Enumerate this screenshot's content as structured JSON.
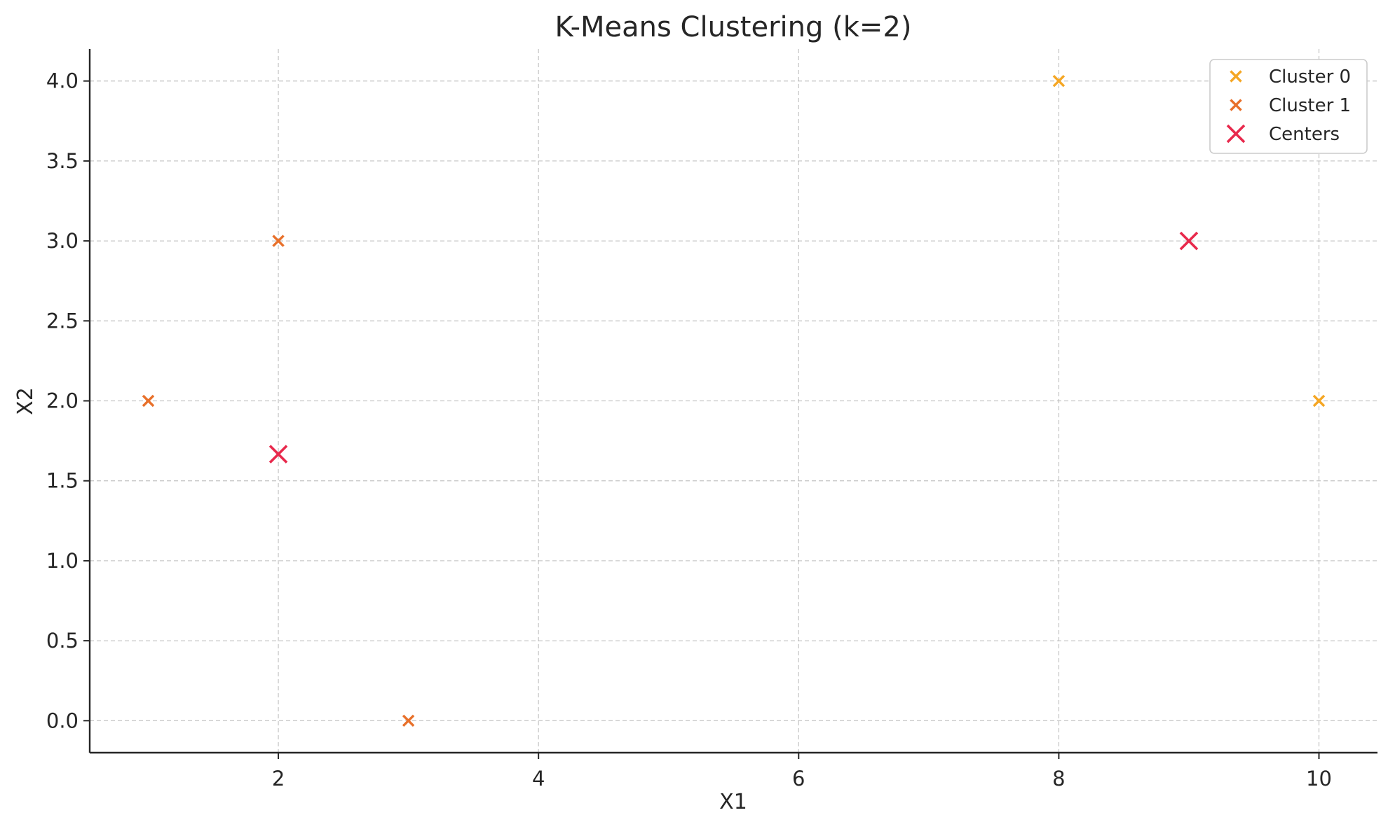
{
  "chart_data": {
    "type": "scatter",
    "title": "K-Means Clustering (k=2)",
    "xlabel": "X1",
    "ylabel": "X2",
    "xlim": [
      0.55,
      10.45
    ],
    "ylim": [
      -0.2,
      4.2
    ],
    "xticks": [
      2,
      4,
      6,
      8,
      10
    ],
    "yticks": [
      0.0,
      0.5,
      1.0,
      1.5,
      2.0,
      2.5,
      3.0,
      3.5,
      4.0
    ],
    "ytick_labels": [
      "0.0",
      "0.5",
      "1.0",
      "1.5",
      "2.0",
      "2.5",
      "3.0",
      "3.5",
      "4.0"
    ],
    "xtick_labels": [
      "2",
      "4",
      "6",
      "8",
      "10"
    ],
    "grid": true,
    "legend_position": "top-right",
    "series": [
      {
        "name": "Cluster 0",
        "color": "#F5A623",
        "marker": "x",
        "points": [
          [
            8,
            4
          ],
          [
            10,
            2
          ]
        ]
      },
      {
        "name": "Cluster 1",
        "color": "#E8702A",
        "marker": "x",
        "points": [
          [
            1,
            2
          ],
          [
            2,
            3
          ],
          [
            3,
            0
          ]
        ]
      },
      {
        "name": "Centers",
        "color": "#E8294C",
        "marker": "x-large",
        "points": [
          [
            2.0,
            1.6667
          ],
          [
            9.0,
            3.0
          ]
        ]
      }
    ]
  }
}
